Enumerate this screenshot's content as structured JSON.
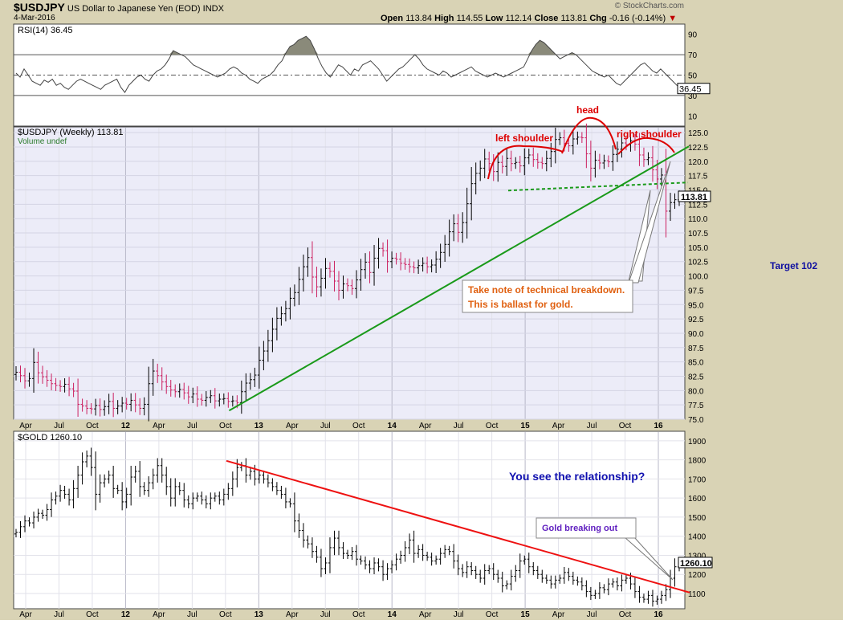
{
  "header": {
    "symbol": "$USDJPY",
    "description": "US Dollar to Japanese Yen (EOD)",
    "exchange": "INDX",
    "date": "4-Mar-2016",
    "watermark": "© StockCharts.com",
    "open_label": "Open",
    "open": "113.84",
    "high_label": "High",
    "high": "114.55",
    "low_label": "Low",
    "low": "112.14",
    "close_label": "Close",
    "close": "113.81",
    "chg_label": "Chg",
    "chg": "-0.16 (-0.14%)"
  },
  "side_note": "Target 102",
  "colors": {
    "frame_bg": "#d9d3b5",
    "panel_bg": "#ffffff",
    "main_bg": "#ececf8",
    "up_bar": "#000000",
    "down_bar": "#cc2060",
    "trend_green": "#1a9a1a",
    "hs_red": "#dd0000",
    "gold_trend": "#ee1111",
    "rsi_line": "#444444",
    "rsi_fill": "#8a8a7a",
    "annotation_text": "#e06010",
    "blue_text": "#1010b0",
    "purple_text": "#6020c0"
  },
  "chart_data": [
    {
      "type": "line",
      "name": "rsi-panel",
      "title": "RSI(14) 36.45",
      "last_value": "36.45",
      "ylim": [
        0,
        100
      ],
      "yticks": [
        10,
        30,
        50,
        70,
        90
      ],
      "reference_lines": [
        30,
        50,
        70
      ],
      "values": [
        52,
        48,
        56,
        50,
        44,
        42,
        40,
        45,
        43,
        46,
        40,
        42,
        38,
        36,
        40,
        44,
        46,
        44,
        42,
        40,
        38,
        36,
        40,
        42,
        44,
        46,
        38,
        33,
        40,
        44,
        48,
        50,
        46,
        44,
        50,
        54,
        56,
        60,
        66,
        74,
        72,
        70,
        68,
        64,
        60,
        58,
        56,
        54,
        52,
        50,
        48,
        50,
        52,
        56,
        58,
        56,
        52,
        50,
        46,
        44,
        42,
        46,
        48,
        50,
        54,
        60,
        64,
        72,
        78,
        80,
        84,
        86,
        88,
        84,
        76,
        66,
        58,
        52,
        48,
        54,
        60,
        58,
        54,
        50,
        56,
        54,
        60,
        62,
        64,
        60,
        56,
        50,
        44,
        48,
        52,
        56,
        58,
        62,
        66,
        70,
        66,
        60,
        56,
        54,
        52,
        50,
        54,
        52,
        48,
        50,
        52,
        54,
        56,
        58,
        54,
        52,
        50,
        48,
        50,
        52,
        50,
        48,
        50,
        52,
        54,
        56,
        58,
        66,
        74,
        80,
        84,
        82,
        78,
        74,
        70,
        66,
        68,
        70,
        72,
        70,
        66,
        62,
        58,
        54,
        52,
        50,
        48,
        50,
        46,
        42,
        40,
        44,
        48,
        52,
        56,
        60,
        62,
        58,
        54,
        52,
        56,
        52,
        48,
        44,
        40,
        36.45
      ]
    },
    {
      "type": "bar",
      "name": "usdjpy-weekly",
      "title": "$USDJPY (Weekly) 113.81",
      "subtitle": "Volume undef",
      "last_value": "113.81",
      "ylim": [
        75,
        126
      ],
      "yticks": [
        75.0,
        77.5,
        80.0,
        82.5,
        85.0,
        87.5,
        90.0,
        92.5,
        95.0,
        97.5,
        100.0,
        102.5,
        105.0,
        107.5,
        110.0,
        112.5,
        115.0,
        117.5,
        120.0,
        122.5,
        125.0
      ],
      "x_tick_labels": [
        "Apr",
        "Jul",
        "Oct",
        "12",
        "Apr",
        "Jul",
        "Oct",
        "13",
        "Apr",
        "Jul",
        "Oct",
        "14",
        "Apr",
        "Jul",
        "Oct",
        "15",
        "Apr",
        "Jul",
        "Oct",
        "16"
      ],
      "closes": [
        83.2,
        82.6,
        81.7,
        82.1,
        84.9,
        83.1,
        82.4,
        81.8,
        81.2,
        80.9,
        80.7,
        81.1,
        80.3,
        79.9,
        77.6,
        77.3,
        76.9,
        76.8,
        77.4,
        76.7,
        77.2,
        78.1,
        76.9,
        77.3,
        77.8,
        77.6,
        78.3,
        77.5,
        76.9,
        77.6,
        81.2,
        83.4,
        82.6,
        81.5,
        80.7,
        80.1,
        79.8,
        80.2,
        79.6,
        78.9,
        79.4,
        78.5,
        78.3,
        78.8,
        79.1,
        78.2,
        78.5,
        78.6,
        78.1,
        78.2,
        77.9,
        79.8,
        81.3,
        81.9,
        82.7,
        85.3,
        86.9,
        88.7,
        90.7,
        92.6,
        93.4,
        94.3,
        96.1,
        97.1,
        99.4,
        101.6,
        103.2,
        99.8,
        98.1,
        99.6,
        101.3,
        100.8,
        99.1,
        97.5,
        98.6,
        98.3,
        97.8,
        99.3,
        101.1,
        102.4,
        100.6,
        103.1,
        104.8,
        104.4,
        102.5,
        103.1,
        102.9,
        102.2,
        102.0,
        101.6,
        101.4,
        101.8,
        102.2,
        101.6,
        101.9,
        102.9,
        104.1,
        105.5,
        107.7,
        109.1,
        107.6,
        109.3,
        112.6,
        116.1,
        117.9,
        118.8,
        120.4,
        119.6,
        118.2,
        119.8,
        119.1,
        120.5,
        119.6,
        119.8,
        119.2,
        120.6,
        121.1,
        120.3,
        119.8,
        119.6,
        120.5,
        121.7,
        123.8,
        124.1,
        123.1,
        122.7,
        123.9,
        124.2,
        124.1,
        121.3,
        118.8,
        120.2,
        119.7,
        120.1,
        119.9,
        121.2,
        122.1,
        123.2,
        122.9,
        123.6,
        123.0,
        121.1,
        120.3,
        120.6,
        118.5,
        116.9,
        117.6,
        111.3,
        112.8,
        113.3,
        113.8
      ],
      "annotations": {
        "left_shoulder": "left shoulder",
        "head": "head",
        "right_shoulder": "right shoulder",
        "callout_line1": "Take note of technical breakdown.",
        "callout_line2": "This is ballast for gold."
      },
      "trendline": {
        "from": [
          0.4,
          76.5
        ],
        "to": [
          1.0,
          122.6
        ]
      },
      "neckline": 115.5
    },
    {
      "type": "bar",
      "name": "gold-weekly",
      "title": "$GOLD 1260.10",
      "last_value": "1260.10",
      "ylim": [
        1020,
        1950
      ],
      "yticks": [
        1100,
        1200,
        1300,
        1400,
        1500,
        1600,
        1700,
        1800,
        1900
      ],
      "x_tick_labels": [
        "Apr",
        "Jul",
        "Oct",
        "12",
        "Apr",
        "Jul",
        "Oct",
        "13",
        "Apr",
        "Jul",
        "Oct",
        "14",
        "Apr",
        "Jul",
        "Oct",
        "15",
        "Apr",
        "Jul",
        "Oct",
        "16"
      ],
      "closes": [
        1420,
        1450,
        1480,
        1470,
        1500,
        1520,
        1510,
        1540,
        1590,
        1610,
        1640,
        1620,
        1590,
        1650,
        1720,
        1790,
        1820,
        1760,
        1620,
        1680,
        1700,
        1720,
        1650,
        1640,
        1580,
        1620,
        1710,
        1740,
        1660,
        1640,
        1680,
        1720,
        1770,
        1720,
        1660,
        1600,
        1660,
        1640,
        1590,
        1570,
        1600,
        1610,
        1590,
        1570,
        1600,
        1610,
        1590,
        1620,
        1650,
        1700,
        1760,
        1770,
        1720,
        1740,
        1700,
        1720,
        1700,
        1680,
        1660,
        1640,
        1620,
        1580,
        1570,
        1480,
        1430,
        1380,
        1360,
        1320,
        1290,
        1230,
        1260,
        1340,
        1390,
        1340,
        1310,
        1300,
        1320,
        1280,
        1270,
        1250,
        1230,
        1260,
        1240,
        1200,
        1230,
        1250,
        1280,
        1300,
        1340,
        1380,
        1310,
        1330,
        1300,
        1290,
        1270,
        1280,
        1310,
        1330,
        1320,
        1270,
        1230,
        1210,
        1240,
        1220,
        1200,
        1180,
        1220,
        1230,
        1200,
        1180,
        1140,
        1150,
        1190,
        1220,
        1270,
        1280,
        1240,
        1220,
        1200,
        1180,
        1170,
        1150,
        1170,
        1180,
        1210,
        1190,
        1170,
        1160,
        1140,
        1110,
        1090,
        1100,
        1130,
        1120,
        1150,
        1160,
        1140,
        1170,
        1180,
        1150,
        1110,
        1080,
        1070,
        1090,
        1060,
        1070,
        1090,
        1120,
        1180,
        1240,
        1260.1
      ],
      "trendline": {
        "from": [
          0.3,
          1795
        ],
        "to": [
          1.0,
          1105
        ]
      },
      "annotations": {
        "question": "You see the relationship?",
        "callout": "Gold breaking out"
      }
    }
  ]
}
